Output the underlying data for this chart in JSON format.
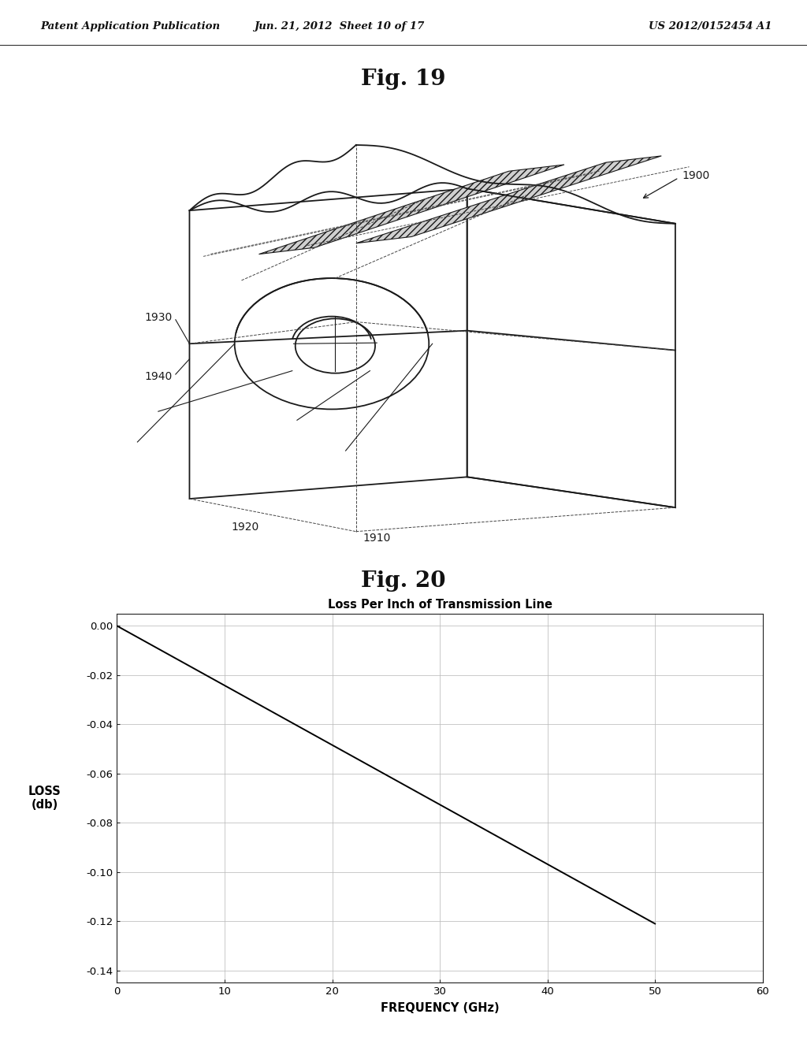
{
  "header_left": "Patent Application Publication",
  "header_mid": "Jun. 21, 2012  Sheet 10 of 17",
  "header_right": "US 2012/0152454 A1",
  "fig19_title": "Fig. 19",
  "fig20_title": "Fig. 20",
  "label_1900": "1900",
  "label_1930": "1930",
  "label_1940": "1940",
  "label_1920": "1920",
  "label_1910": "1910",
  "chart_title": "Loss Per Inch of Transmission Line",
  "xlabel": "FREQUENCY (GHz)",
  "ylabel": "LOSS\n(db)",
  "xlim": [
    0,
    60
  ],
  "ylim": [
    -0.145,
    0.005
  ],
  "xticks": [
    0,
    10,
    20,
    30,
    40,
    50,
    60
  ],
  "yticks": [
    0.0,
    -0.02,
    -0.04,
    -0.06,
    -0.08,
    -0.1,
    -0.12,
    -0.14
  ],
  "ytick_labels": [
    "0.00",
    "-0.02",
    "-0.04",
    "-0.06",
    "-0.08",
    "-0.10",
    "-0.12",
    "-0.14"
  ],
  "line_x": [
    0,
    50
  ],
  "line_y": [
    0.0,
    -0.121
  ],
  "line_color": "#000000",
  "grid_color": "#bbbbbb",
  "background": "#ffffff",
  "text_color": "#000000"
}
